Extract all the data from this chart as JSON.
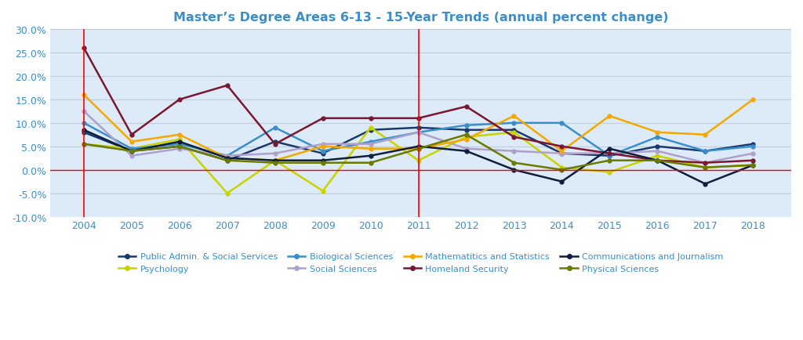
{
  "title": "Master’s Degree Areas 6-13 - 15-Year Trends (annual percent change)",
  "years": [
    2004,
    2005,
    2006,
    2007,
    2008,
    2009,
    2010,
    2011,
    2012,
    2013,
    2014,
    2015,
    2016,
    2017,
    2018
  ],
  "series": {
    "Public Admin. & Social Services": {
      "color": "#1a3a6b",
      "values": [
        8.0,
        4.0,
        5.0,
        2.0,
        6.0,
        3.5,
        8.5,
        9.0,
        8.5,
        8.5,
        3.5,
        3.0,
        5.0,
        4.0,
        5.5
      ]
    },
    "Psychology": {
      "color": "#c8d400",
      "values": [
        5.5,
        4.5,
        6.5,
        -5.0,
        2.0,
        -4.5,
        9.0,
        2.0,
        7.0,
        8.0,
        0.5,
        -0.5,
        3.0,
        0.5,
        1.0
      ]
    },
    "Biological Sciences": {
      "color": "#3a8fcb",
      "values": [
        10.0,
        4.5,
        5.5,
        3.0,
        9.0,
        4.0,
        6.0,
        8.0,
        9.5,
        10.0,
        10.0,
        3.0,
        7.0,
        4.0,
        5.0
      ]
    },
    "Social Sciences": {
      "color": "#b0a0cc",
      "values": [
        12.5,
        3.0,
        4.5,
        3.0,
        3.5,
        5.5,
        5.5,
        8.0,
        4.5,
        4.0,
        3.5,
        3.5,
        4.0,
        1.5,
        3.5
      ]
    },
    "Mathematitics and Statistics": {
      "color": "#f5a800",
      "values": [
        16.0,
        6.0,
        7.5,
        2.5,
        2.0,
        5.0,
        4.5,
        4.5,
        6.5,
        11.5,
        4.0,
        11.5,
        8.0,
        7.5,
        15.0
      ]
    },
    "Homeland Security": {
      "color": "#7b1730",
      "values": [
        26.0,
        7.5,
        15.0,
        18.0,
        5.5,
        11.0,
        11.0,
        11.0,
        13.5,
        7.0,
        5.0,
        3.5,
        2.0,
        1.5,
        2.0
      ]
    },
    "Communications and Journalism": {
      "color": "#0d1f3c",
      "values": [
        8.5,
        4.0,
        6.0,
        2.5,
        2.0,
        2.0,
        3.0,
        5.0,
        4.0,
        0.0,
        -2.5,
        4.5,
        2.0,
        -3.0,
        1.0
      ]
    },
    "Physical Sciences": {
      "color": "#6b7a00",
      "values": [
        5.5,
        4.0,
        5.0,
        2.0,
        1.5,
        1.5,
        1.5,
        4.5,
        7.5,
        1.5,
        0.0,
        2.0,
        2.0,
        0.5,
        1.0
      ]
    }
  },
  "vlines": [
    2004,
    2011
  ],
  "hline": 0.0,
  "ylim": [
    -10.0,
    30.0
  ],
  "yticks": [
    -10.0,
    -5.0,
    0.0,
    5.0,
    10.0,
    15.0,
    20.0,
    25.0,
    30.0
  ],
  "background_color": "#ffffff",
  "plot_bg_color": "#ddeaf7",
  "grid_color": "#b8d0ea",
  "title_color": "#3a8fcb",
  "tick_color": "#3a8fcb"
}
